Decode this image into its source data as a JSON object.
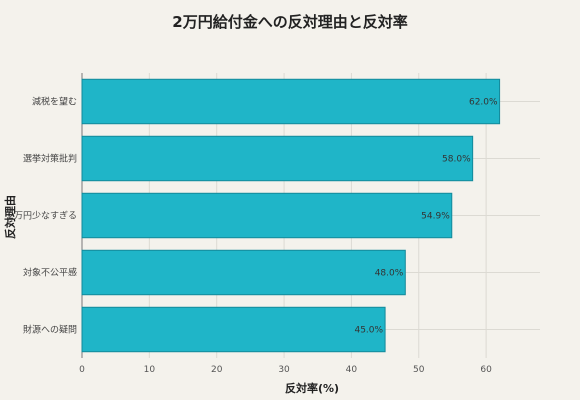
{
  "chart_data": {
    "type": "bar",
    "orientation": "horizontal",
    "title": "2万円給付金への反対理由と反対率",
    "xlabel": "反対率(%)",
    "ylabel": "反対理由",
    "categories": [
      "減税を望む",
      "選挙対策批判",
      "2万円少なすぎる",
      "対象不公平感",
      "財源への疑問"
    ],
    "values": [
      62.0,
      58.0,
      54.9,
      48.0,
      45.0
    ],
    "value_labels": [
      "62.0%",
      "58.0%",
      "54.9%",
      "48.0%",
      "45.0%"
    ],
    "xlim": [
      0,
      68
    ],
    "xticks": [
      0,
      10,
      20,
      30,
      40,
      50,
      60
    ],
    "grid": true,
    "colors": {
      "bar": "#1fb5c8",
      "bar_edge": "#13899a"
    }
  }
}
